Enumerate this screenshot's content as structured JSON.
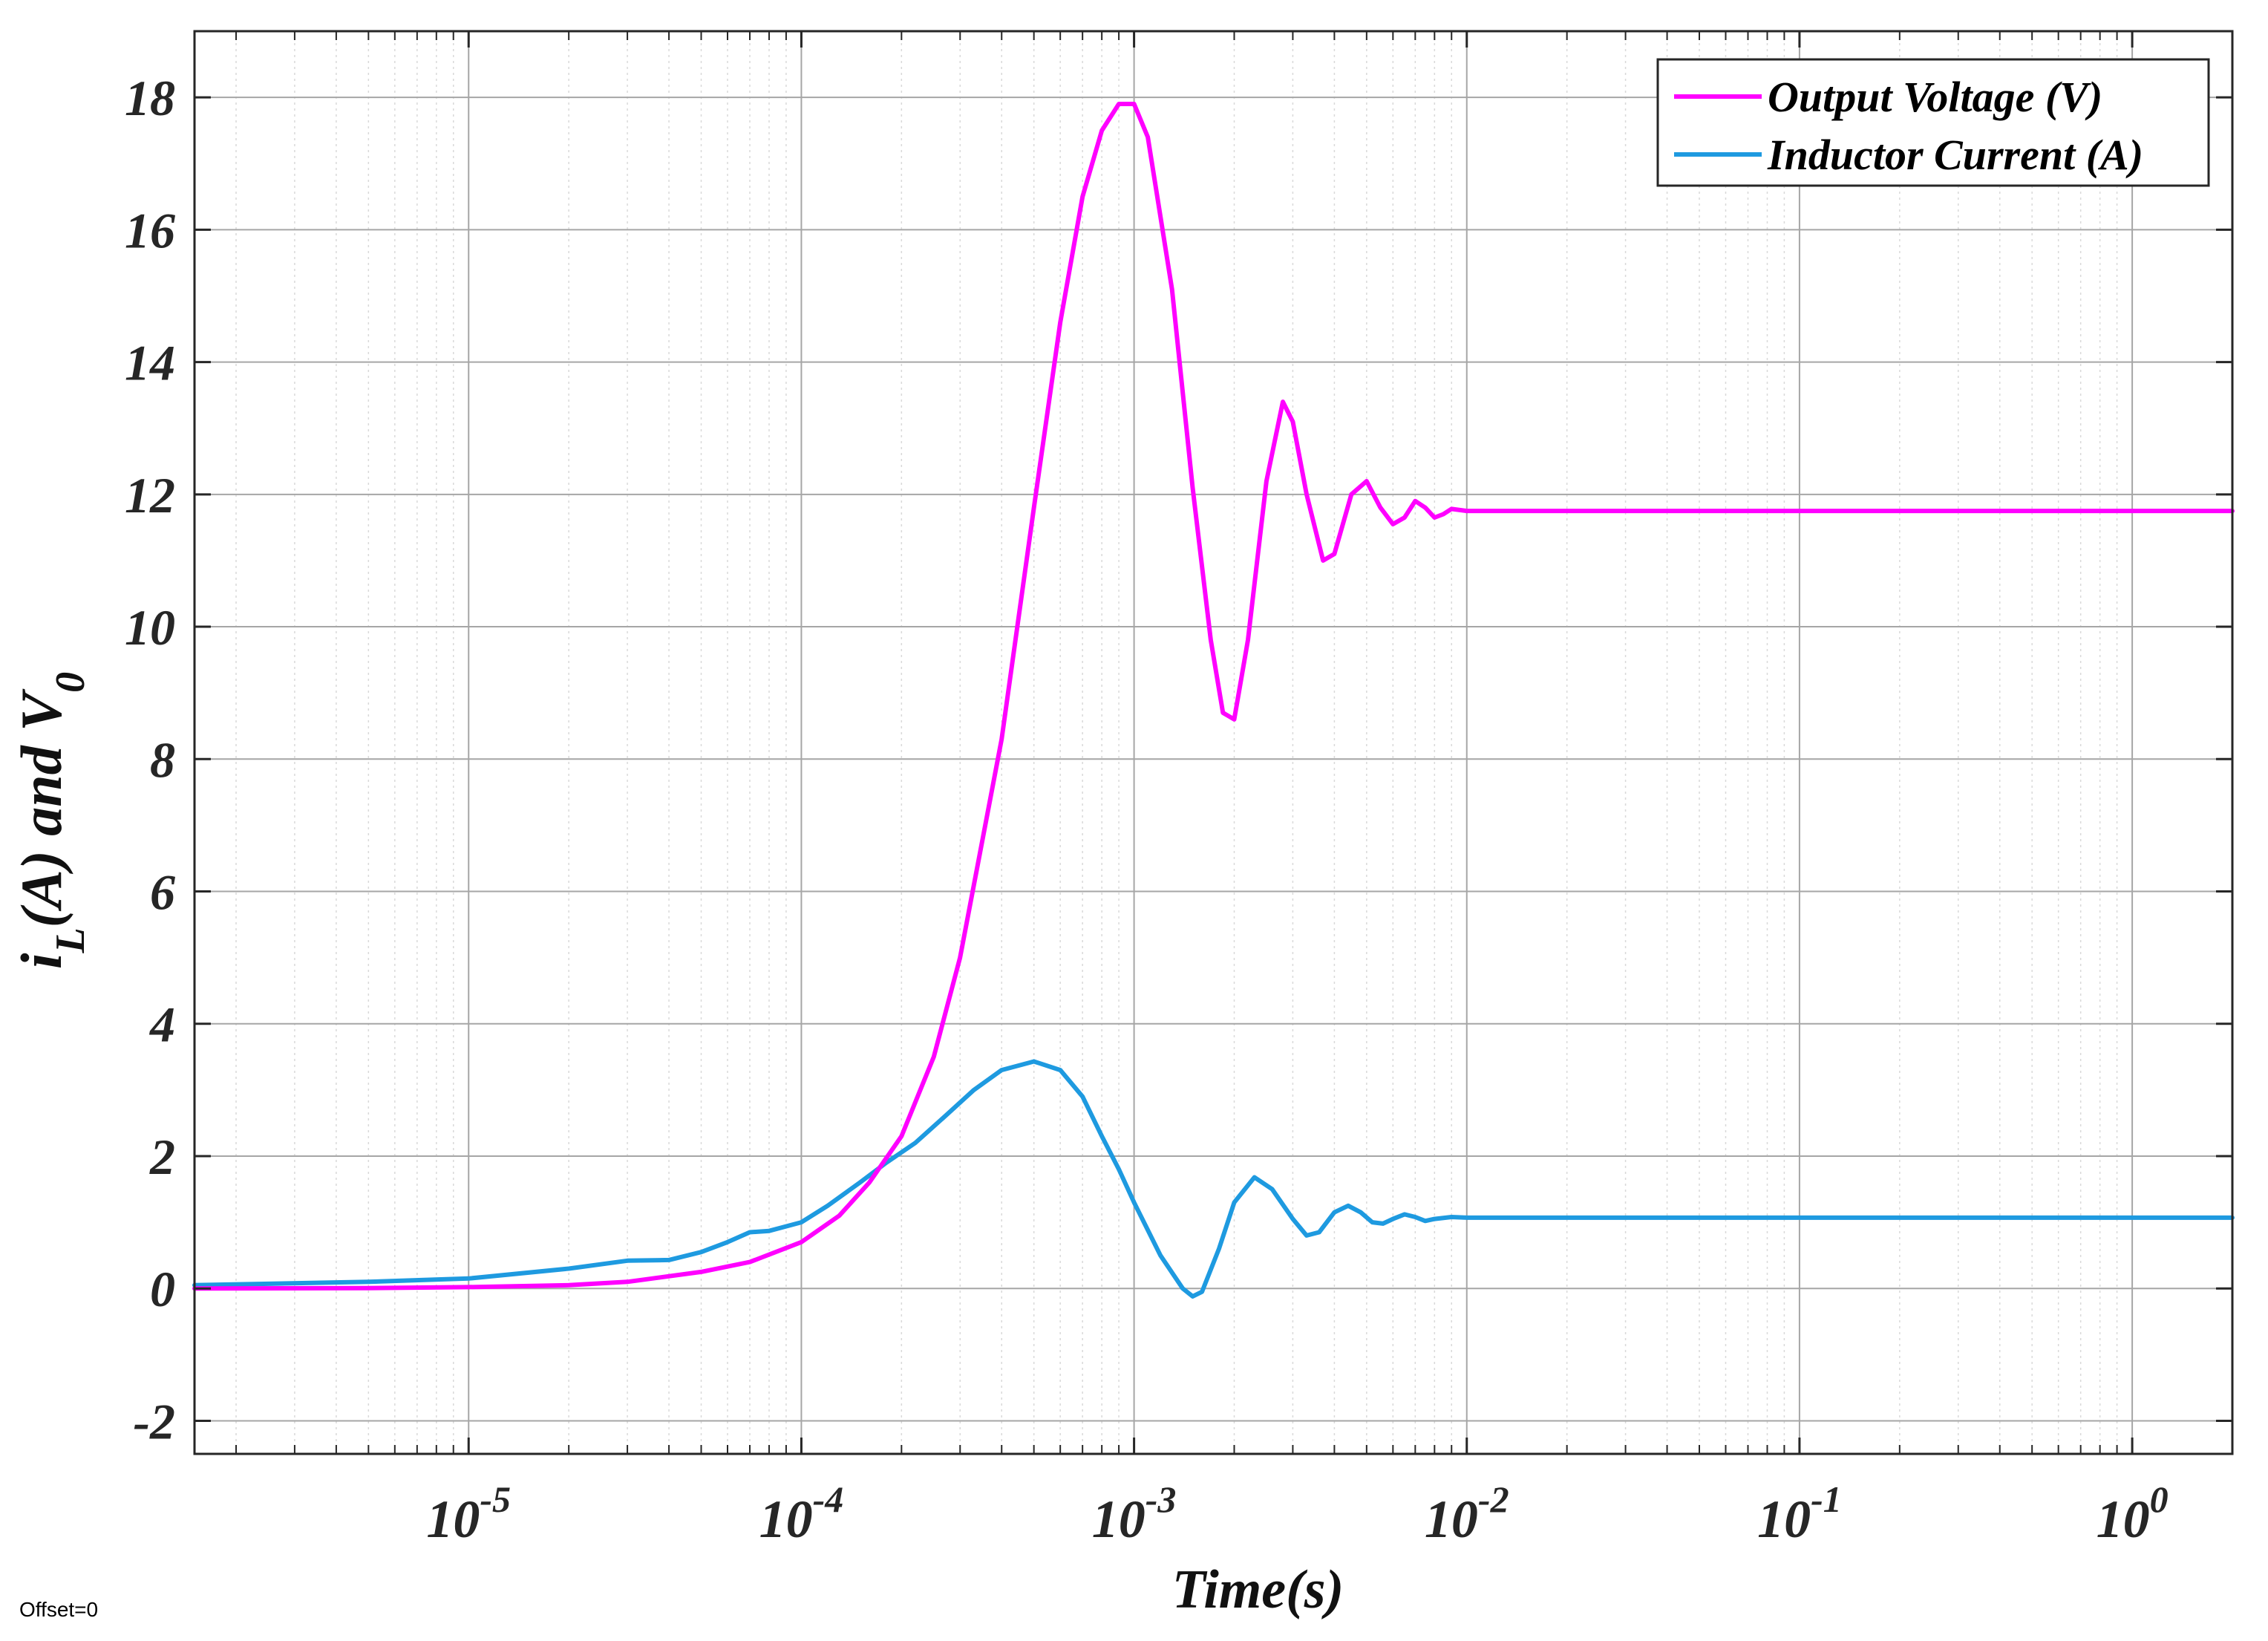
{
  "chart_data": {
    "type": "line",
    "xscale": "log",
    "xlabel": "Time(s)",
    "ylabel": "i_L(A) and V_0",
    "xlim": [
      1.5e-06,
      2.0
    ],
    "ylim": [
      -2.5,
      19
    ],
    "grid": true,
    "legend_position": "top-right",
    "x_ticks": [
      {
        "value": 1e-05,
        "base": "10",
        "exp": "-5"
      },
      {
        "value": 0.0001,
        "base": "10",
        "exp": "-4"
      },
      {
        "value": 0.001,
        "base": "10",
        "exp": "-3"
      },
      {
        "value": 0.01,
        "base": "10",
        "exp": "-2"
      },
      {
        "value": 0.1,
        "base": "10",
        "exp": "-1"
      },
      {
        "value": 1,
        "base": "10",
        "exp": "0"
      }
    ],
    "y_ticks": [
      -2,
      0,
      2,
      4,
      6,
      8,
      10,
      12,
      14,
      16,
      18
    ],
    "series": [
      {
        "name": "Output Voltage (V)",
        "color": "#ff00ff",
        "x": [
          1.5e-06,
          5e-06,
          1e-05,
          2e-05,
          3e-05,
          5e-05,
          7e-05,
          0.0001,
          0.00013,
          0.00016,
          0.0002,
          0.00025,
          0.0003,
          0.0004,
          0.0005,
          0.0006,
          0.0007,
          0.0008,
          0.0009,
          0.001,
          0.0011,
          0.0013,
          0.0015,
          0.0017,
          0.00185,
          0.002,
          0.0022,
          0.0025,
          0.0028,
          0.003,
          0.0033,
          0.0037,
          0.004,
          0.0045,
          0.005,
          0.0055,
          0.006,
          0.0065,
          0.007,
          0.0075,
          0.008,
          0.0085,
          0.009,
          0.01,
          0.02,
          0.05,
          0.1,
          0.2,
          0.5,
          1,
          2
        ],
        "y": [
          0,
          0.005,
          0.02,
          0.05,
          0.1,
          0.25,
          0.4,
          0.7,
          1.1,
          1.6,
          2.3,
          3.5,
          5.0,
          8.3,
          11.8,
          14.6,
          16.5,
          17.5,
          17.9,
          17.9,
          17.4,
          15.1,
          12.1,
          9.8,
          8.7,
          8.6,
          9.8,
          12.2,
          13.4,
          13.1,
          12.0,
          11.0,
          11.1,
          12.0,
          12.2,
          11.8,
          11.55,
          11.65,
          11.9,
          11.8,
          11.65,
          11.7,
          11.78,
          11.75,
          11.75,
          11.75,
          11.75,
          11.75,
          11.75,
          11.75,
          11.75
        ]
      },
      {
        "name": "Inductor Current (A)",
        "color": "#1e9ae0",
        "x": [
          1.5e-06,
          5e-06,
          1e-05,
          2e-05,
          3e-05,
          4e-05,
          5e-05,
          6e-05,
          7e-05,
          8e-05,
          0.0001,
          0.00012,
          0.00015,
          0.00018,
          0.00022,
          0.00027,
          0.00033,
          0.0004,
          0.0005,
          0.0006,
          0.0007,
          0.0008,
          0.0009,
          0.001,
          0.0012,
          0.0014,
          0.0015,
          0.0016,
          0.0018,
          0.002,
          0.0023,
          0.0026,
          0.003,
          0.0033,
          0.0036,
          0.004,
          0.0044,
          0.0048,
          0.0052,
          0.0056,
          0.006,
          0.0065,
          0.007,
          0.0075,
          0.008,
          0.009,
          0.01,
          0.03,
          0.1,
          0.3,
          1,
          2
        ],
        "y": [
          0.05,
          0.1,
          0.15,
          0.3,
          0.42,
          0.43,
          0.55,
          0.7,
          0.85,
          0.87,
          1.0,
          1.25,
          1.6,
          1.9,
          2.2,
          2.6,
          3.0,
          3.3,
          3.43,
          3.3,
          2.9,
          2.3,
          1.8,
          1.3,
          0.5,
          0.0,
          -0.12,
          -0.05,
          0.6,
          1.3,
          1.68,
          1.5,
          1.05,
          0.8,
          0.85,
          1.15,
          1.25,
          1.15,
          1.0,
          0.98,
          1.05,
          1.12,
          1.08,
          1.02,
          1.05,
          1.08,
          1.07,
          1.07,
          1.07,
          1.07,
          1.07,
          1.07
        ]
      }
    ]
  },
  "offset_label": "Offset=0"
}
